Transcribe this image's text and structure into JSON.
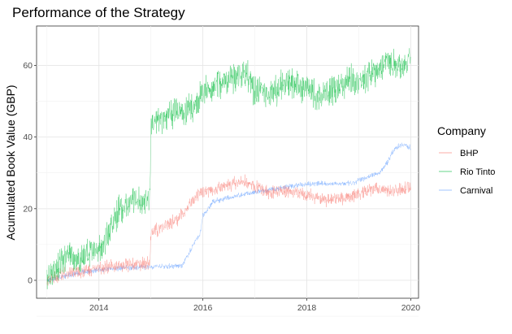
{
  "chart_data": {
    "type": "line",
    "title": "Performance of the Strategy",
    "xlabel": "",
    "ylabel": "Acumulated Book Value (GBP)",
    "xlim": [
      2012.8,
      2020.15
    ],
    "ylim": [
      -5,
      71
    ],
    "x_ticks": [
      2014,
      2016,
      2018,
      2020
    ],
    "y_ticks": [
      0,
      20,
      40,
      60
    ],
    "grid": true,
    "legend": {
      "title": "Company",
      "position": "right"
    },
    "series": [
      {
        "name": "BHP",
        "color": "#F8766D",
        "x": [
          2013.0,
          2013.2,
          2013.4,
          2013.6,
          2013.8,
          2014.0,
          2014.2,
          2014.5,
          2014.8,
          2014.98,
          2015.0,
          2015.2,
          2015.5,
          2015.8,
          2016.0,
          2016.3,
          2016.6,
          2016.8,
          2017.0,
          2017.3,
          2017.6,
          2018.0,
          2018.3,
          2018.7,
          2019.0,
          2019.3,
          2019.6,
          2019.8,
          2020.0
        ],
        "values": [
          0,
          1,
          2,
          2.5,
          3,
          3.5,
          4,
          4,
          4.5,
          5,
          13,
          15,
          17,
          22,
          25,
          25.5,
          27,
          27.5,
          26,
          24.5,
          25,
          24,
          22.5,
          23,
          24,
          25.5,
          25,
          25.5,
          26
        ],
        "noise": 1.5
      },
      {
        "name": "Rio Tinto",
        "color": "#00BA38",
        "x": [
          2013.0,
          2013.2,
          2013.4,
          2013.6,
          2013.8,
          2014.0,
          2014.2,
          2014.4,
          2014.6,
          2014.8,
          2014.98,
          2015.0,
          2015.2,
          2015.5,
          2015.8,
          2016.0,
          2016.3,
          2016.6,
          2016.8,
          2017.0,
          2017.3,
          2017.6,
          2017.9,
          2018.2,
          2018.5,
          2018.8,
          2019.0,
          2019.3,
          2019.5,
          2019.8,
          2020.0
        ],
        "values": [
          1,
          4,
          7,
          6,
          7,
          8,
          14,
          20,
          22,
          22,
          23,
          43,
          45,
          47,
          48,
          52,
          55,
          57,
          58,
          53,
          52,
          55,
          54,
          51,
          53,
          56,
          56,
          58,
          61,
          60,
          62
        ],
        "noise": 3.5
      },
      {
        "name": "Carnival",
        "color": "#619CFF",
        "x": [
          2013.0,
          2013.3,
          2013.6,
          2014.0,
          2014.5,
          2015.0,
          2015.3,
          2015.6,
          2015.75,
          2015.85,
          2015.95,
          2016.0,
          2016.2,
          2016.5,
          2016.8,
          2017.2,
          2017.6,
          2018.0,
          2018.5,
          2018.9,
          2019.0,
          2019.2,
          2019.4,
          2019.55,
          2019.7,
          2019.85,
          2020.0
        ],
        "values": [
          0,
          1,
          2,
          3,
          3.5,
          3.8,
          4,
          4,
          8,
          11,
          13,
          18,
          22,
          23,
          24,
          25,
          26,
          27,
          27,
          27,
          28,
          29,
          30,
          33,
          37,
          38,
          37
        ],
        "noise": 0.6
      }
    ]
  }
}
